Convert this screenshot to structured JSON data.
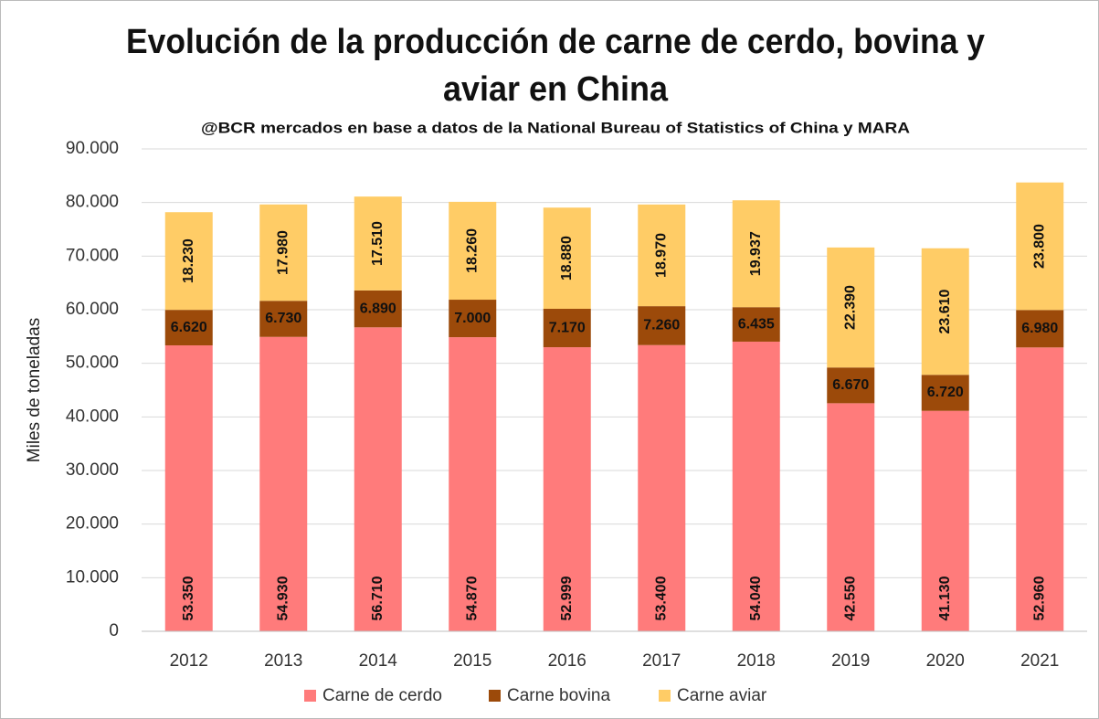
{
  "chart_data": {
    "type": "stacked_bar",
    "title": [
      "Evolución de la producción de carne de cerdo, bovina y",
      "aviar en China"
    ],
    "subtitle": "@BCR mercados en base a datos de la National Bureau of Statistics of China y MARA",
    "y_label": "Miles de toneladas",
    "categories": [
      "2012",
      "2013",
      "2014",
      "2015",
      "2016",
      "2017",
      "2018",
      "2019",
      "2020",
      "2021"
    ],
    "series": [
      {
        "name": "Carne de cerdo",
        "color": "#ff7b7b",
        "values": [
          53350,
          54930,
          56710,
          54870,
          52999,
          53400,
          54040,
          42550,
          41130,
          52960
        ],
        "value_labels": [
          "53.350",
          "54.930",
          "56.710",
          "54.870",
          "52.999",
          "53.400",
          "54.040",
          "42.550",
          "41.130",
          "52.960"
        ]
      },
      {
        "name": "Carne bovina",
        "color": "#9c4a0a",
        "values": [
          6620,
          6730,
          6890,
          7000,
          7170,
          7260,
          6435,
          6670,
          6720,
          6980
        ],
        "value_labels": [
          "6.620",
          "6.730",
          "6.890",
          "7.000",
          "7.170",
          "7.260",
          "6.435",
          "6.670",
          "6.720",
          "6.980"
        ]
      },
      {
        "name": "Carne aviar",
        "color": "#ffcc66",
        "values": [
          18230,
          17980,
          17510,
          18260,
          18880,
          18970,
          19937,
          22390,
          23610,
          23800
        ],
        "value_labels": [
          "18.230",
          "17.980",
          "17.510",
          "18.260",
          "18.880",
          "18.970",
          "19.937",
          "22.390",
          "23.610",
          "23.800"
        ]
      }
    ],
    "ylim": [
      0,
      90000
    ],
    "yticks": [
      0,
      {
        "value": 10000,
        "label": "10.000"
      },
      {
        "value": 20000,
        "label": "20.000"
      },
      {
        "value": 30000,
        "label": "30.000"
      },
      {
        "value": 40000,
        "label": "40.000"
      },
      {
        "value": 50000,
        "label": "50.000"
      },
      {
        "value": 60000,
        "label": "60.000"
      },
      {
        "value": 70000,
        "label": "70.000"
      },
      {
        "value": 80000,
        "label": "80.000"
      },
      {
        "value": 90000,
        "label": "90.000"
      }
    ],
    "grid": true,
    "legend": "bottom"
  }
}
